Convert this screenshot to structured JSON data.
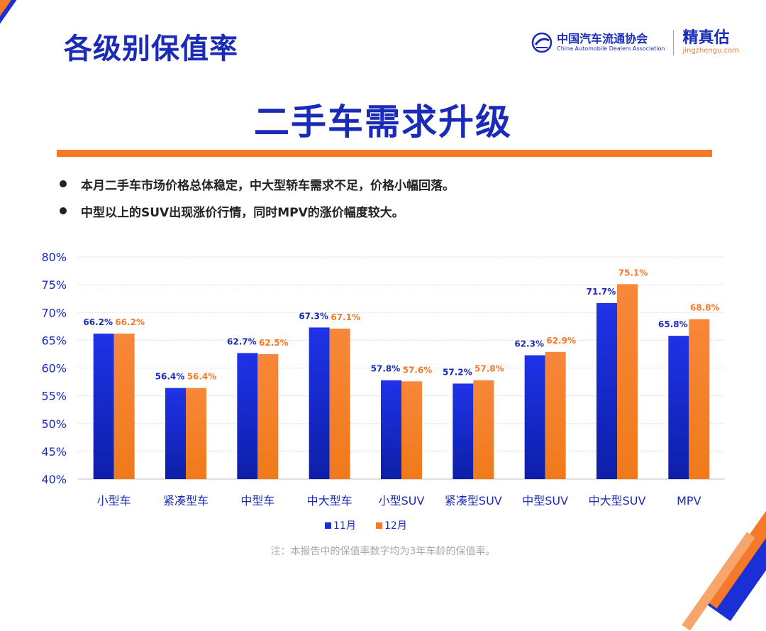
{
  "header": {
    "title": "各级别保值率",
    "logo_cada_cn": "中国汽车流通协会",
    "logo_cada_en": "China Automobile Dealers Association",
    "logo_jzg_cn": "精真估",
    "logo_jzg_en": "jingzhengu.com"
  },
  "headline": "二手车需求升级",
  "bullets": [
    "本月二手车市场价格总体稳定，中大型轿车需求不足，价格小幅回落。",
    "中型以上的SUV出现涨价行情，同时MPV的涨价幅度较大。"
  ],
  "footnote": "注：本报告中的保值率数字均为3年车龄的保值率。",
  "colors": {
    "accent_blue": "#1a2bb8",
    "accent_orange": "#f47a2a"
  },
  "chart_data": {
    "type": "bar",
    "categories": [
      "小型车",
      "紧凑型车",
      "中型车",
      "中大型车",
      "小型SUV",
      "紧凑型SUV",
      "中型SUV",
      "中大型SUV",
      "MPV"
    ],
    "series": [
      {
        "name": "11月",
        "color": "#1a2fd6",
        "label_color": "#1a2bb8",
        "values": [
          66.2,
          56.4,
          62.7,
          67.3,
          57.8,
          57.2,
          62.3,
          71.7,
          65.8
        ],
        "labels": [
          "66.2%",
          "56.4%",
          "62.7%",
          "67.3%",
          "57.8%",
          "57.2%",
          "62.3%",
          "71.7%",
          "65.8%"
        ]
      },
      {
        "name": "12月",
        "color": "#f47a2a",
        "label_color": "#f47a2a",
        "values": [
          66.2,
          56.4,
          62.5,
          67.1,
          57.6,
          57.8,
          62.9,
          75.1,
          68.8
        ],
        "labels": [
          "66.2%",
          "56.4%",
          "62.5%",
          "67.1%",
          "57.6%",
          "57.8%",
          "62.9%",
          "75.1%",
          "68.8%"
        ]
      }
    ],
    "ylim": [
      40,
      80
    ],
    "yticks": [
      40,
      45,
      50,
      55,
      60,
      65,
      70,
      75,
      80
    ],
    "ytick_labels": [
      "40%",
      "45%",
      "50%",
      "55%",
      "60%",
      "65%",
      "70%",
      "75%",
      "80%"
    ],
    "grid": true,
    "legend": "bottom-center"
  }
}
